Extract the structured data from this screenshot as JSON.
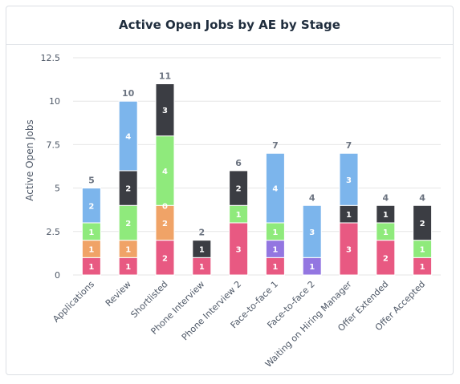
{
  "header": {
    "title": "Active Open Jobs by AE by Stage"
  },
  "colors": {
    "series": [
      "#e85982",
      "#f0a367",
      "#9376e1",
      "#8fea7c",
      "#3b3d43",
      "#7cb5ec"
    ],
    "grid": "#e6e6e6"
  },
  "chart_data": {
    "type": "bar",
    "stacked": true,
    "title": "Active Open Jobs by AE by Stage",
    "xlabel": "",
    "ylabel": "Active Open Jobs",
    "ylim": [
      0,
      12.5
    ],
    "yticks": [
      "0",
      "2.5",
      "5",
      "7.5",
      "10",
      "12.5"
    ],
    "grid": true,
    "legend": "none",
    "categories": [
      "Applications",
      "Review",
      "Shortlisted",
      "Phone Interview",
      "Phone Interview 2",
      "Face-to-face 1",
      "Face-to-face 2",
      "Waiting on Hiring Manager",
      "Offer Extended",
      "Offer Accepted"
    ],
    "totals": [
      5,
      10,
      11,
      2,
      6,
      7,
      4,
      7,
      4,
      4
    ],
    "series": [
      {
        "values": [
          1,
          1,
          2,
          1,
          3,
          1,
          0,
          3,
          2,
          1
        ]
      },
      {
        "values": [
          1,
          1,
          2,
          0,
          0,
          0,
          0,
          0,
          0,
          0
        ]
      },
      {
        "values": [
          0,
          0,
          0,
          0,
          0,
          1,
          1,
          0,
          0,
          0
        ]
      },
      {
        "values": [
          1,
          2,
          4,
          0,
          1,
          1,
          0,
          0,
          1,
          1
        ]
      },
      {
        "values": [
          0,
          2,
          3,
          1,
          2,
          0,
          0,
          1,
          1,
          2
        ]
      },
      {
        "values": [
          2,
          4,
          0,
          0,
          0,
          4,
          3,
          3,
          0,
          0
        ]
      }
    ],
    "extra_labels": [
      {
        "category": "Shortlisted",
        "text": "0"
      }
    ]
  }
}
